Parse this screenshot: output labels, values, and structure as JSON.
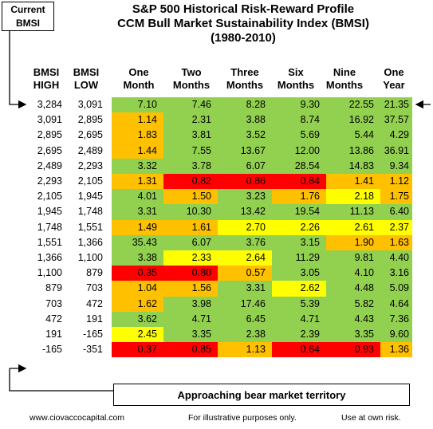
{
  "colors": {
    "green": "#92d050",
    "orange": "#ffc000",
    "yellow": "#ffff00",
    "red": "#ff0000"
  },
  "title_lines": [
    "S&P 500 Historical Risk-Reward Profile",
    "CCM Bull Market Sustainability Index (BMSI)",
    "(1980-2010)"
  ],
  "current_label": [
    "Current",
    "BMSI"
  ],
  "headers": {
    "high": [
      "BMSI",
      "HIGH"
    ],
    "low": [
      "BMSI",
      "LOW"
    ],
    "periods": [
      [
        "One",
        "Month"
      ],
      [
        "Two",
        "Months"
      ],
      [
        "Three",
        "Months"
      ],
      [
        "Six",
        "Months"
      ],
      [
        "Nine",
        "Months"
      ],
      [
        "One",
        "Year"
      ]
    ]
  },
  "banner": "Approaching bear market territory",
  "footer": {
    "site": "www.ciovaccocapital.com",
    "note": "For illustrative purposes only.",
    "risk": "Use at own risk."
  },
  "chart_data": {
    "type": "table",
    "columns": [
      "BMSI HIGH",
      "BMSI LOW",
      "One Month",
      "Two Months",
      "Three Months",
      "Six Months",
      "Nine Months",
      "One Year"
    ],
    "rows": [
      {
        "high": "3,284",
        "low": "3,091",
        "values": [
          "7.10",
          "7.46",
          "8.28",
          "9.30",
          "22.55",
          "21.35"
        ],
        "colors": [
          "g",
          "g",
          "g",
          "g",
          "g",
          "g"
        ]
      },
      {
        "high": "3,091",
        "low": "2,895",
        "values": [
          "1.14",
          "2.31",
          "3.88",
          "8.74",
          "16.92",
          "37.57"
        ],
        "colors": [
          "o",
          "g",
          "g",
          "g",
          "g",
          "g"
        ]
      },
      {
        "high": "2,895",
        "low": "2,695",
        "values": [
          "1.83",
          "3.81",
          "3.52",
          "5.69",
          "5.44",
          "4.29"
        ],
        "colors": [
          "o",
          "g",
          "g",
          "g",
          "g",
          "g"
        ]
      },
      {
        "high": "2,695",
        "low": "2,489",
        "values": [
          "1.44",
          "7.55",
          "13.67",
          "12.00",
          "13.86",
          "36.91"
        ],
        "colors": [
          "o",
          "g",
          "g",
          "g",
          "g",
          "g"
        ]
      },
      {
        "high": "2,489",
        "low": "2,293",
        "values": [
          "3.32",
          "3.78",
          "6.07",
          "28.54",
          "14.83",
          "9.34"
        ],
        "colors": [
          "g",
          "g",
          "g",
          "g",
          "g",
          "g"
        ]
      },
      {
        "high": "2,293",
        "low": "2,105",
        "values": [
          "1.31",
          "0.82",
          "0.86",
          "0.84",
          "1.41",
          "1.12"
        ],
        "colors": [
          "o",
          "r",
          "r",
          "r",
          "o",
          "o"
        ]
      },
      {
        "high": "2,105",
        "low": "1,945",
        "values": [
          "4.01",
          "1.50",
          "3.23",
          "1.76",
          "2.18",
          "1.75"
        ],
        "colors": [
          "g",
          "o",
          "g",
          "o",
          "y",
          "o"
        ]
      },
      {
        "high": "1,945",
        "low": "1,748",
        "values": [
          "3.31",
          "10.30",
          "13.42",
          "19.54",
          "11.13",
          "6.40"
        ],
        "colors": [
          "g",
          "g",
          "g",
          "g",
          "g",
          "g"
        ]
      },
      {
        "high": "1,748",
        "low": "1,551",
        "values": [
          "1.49",
          "1.61",
          "2.70",
          "2.26",
          "2.61",
          "2.37"
        ],
        "colors": [
          "o",
          "o",
          "y",
          "y",
          "y",
          "y"
        ]
      },
      {
        "high": "1,551",
        "low": "1,366",
        "values": [
          "35.43",
          "6.07",
          "3.76",
          "3.15",
          "1.90",
          "1.63"
        ],
        "colors": [
          "g",
          "g",
          "g",
          "g",
          "o",
          "o"
        ]
      },
      {
        "high": "1,366",
        "low": "1,100",
        "values": [
          "3.38",
          "2.33",
          "2.64",
          "11.29",
          "9.81",
          "4.40"
        ],
        "colors": [
          "g",
          "y",
          "y",
          "g",
          "g",
          "g"
        ]
      },
      {
        "high": "1,100",
        "low": "879",
        "values": [
          "0.35",
          "0.80",
          "0.57",
          "3.05",
          "4.10",
          "3.16"
        ],
        "colors": [
          "r",
          "r",
          "o",
          "g",
          "g",
          "g"
        ]
      },
      {
        "high": "879",
        "low": "703",
        "values": [
          "1.04",
          "1.56",
          "3.31",
          "2.62",
          "4.48",
          "5.09"
        ],
        "colors": [
          "o",
          "o",
          "g",
          "y",
          "g",
          "g"
        ]
      },
      {
        "high": "703",
        "low": "472",
        "values": [
          "1.62",
          "3.98",
          "17.46",
          "5.39",
          "5.82",
          "4.64"
        ],
        "colors": [
          "o",
          "g",
          "g",
          "g",
          "g",
          "g"
        ]
      },
      {
        "high": "472",
        "low": "191",
        "values": [
          "3.62",
          "4.71",
          "6.45",
          "4.71",
          "4.43",
          "7.36"
        ],
        "colors": [
          "g",
          "g",
          "g",
          "g",
          "g",
          "g"
        ]
      },
      {
        "high": "191",
        "low": "-165",
        "values": [
          "2.45",
          "3.35",
          "2.38",
          "2.39",
          "3.35",
          "9.60"
        ],
        "colors": [
          "y",
          "g",
          "g",
          "g",
          "g",
          "g"
        ]
      },
      {
        "high": "-165",
        "low": "-351",
        "values": [
          "0.37",
          "0.85",
          "1.13",
          "0.64",
          "0.93",
          "1.36"
        ],
        "colors": [
          "r",
          "r",
          "o",
          "r",
          "r",
          "o"
        ]
      }
    ]
  }
}
